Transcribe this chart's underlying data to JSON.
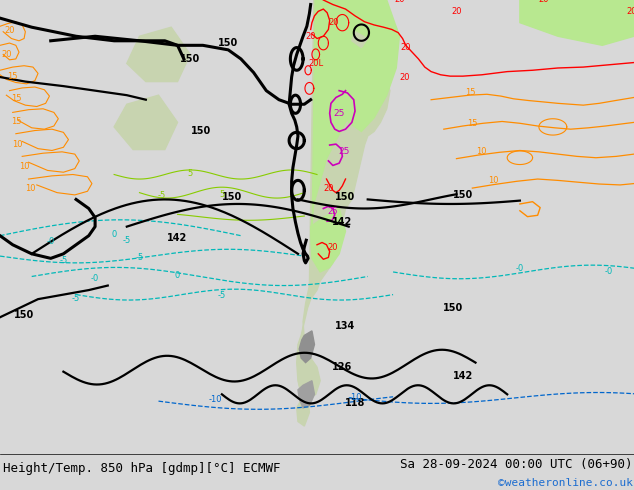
{
  "title_left": "Height/Temp. 850 hPa [gdmp][°C] ECMWF",
  "title_right": "Sa 28-09-2024 00:00 UTC (06+90)",
  "watermark": "©weatheronline.co.uk",
  "fig_width": 6.34,
  "fig_height": 4.9,
  "dpi": 100,
  "title_fontsize": 9,
  "watermark_color": "#1c6dd0",
  "watermark_fontsize": 8,
  "map_bg": "#d8d8d8",
  "bottom_bg": "#d8d8d8",
  "land_color": "#c8d4b0",
  "green_zone_color": "#b8e890",
  "ocean_color": "#d0d0d8"
}
